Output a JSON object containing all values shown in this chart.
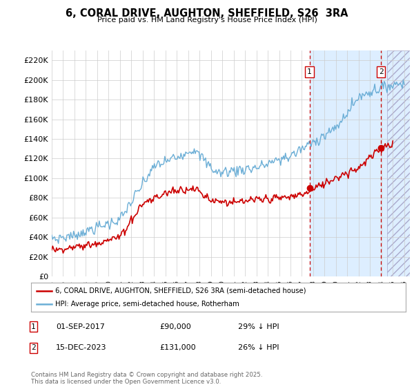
{
  "title": "6, CORAL DRIVE, AUGHTON, SHEFFIELD, S26  3RA",
  "subtitle": "Price paid vs. HM Land Registry's House Price Index (HPI)",
  "ylim": [
    0,
    230000
  ],
  "yticks": [
    0,
    20000,
    40000,
    60000,
    80000,
    100000,
    120000,
    140000,
    160000,
    180000,
    200000,
    220000
  ],
  "ytick_labels": [
    "£0",
    "£20K",
    "£40K",
    "£60K",
    "£80K",
    "£100K",
    "£120K",
    "£140K",
    "£160K",
    "£180K",
    "£200K",
    "£220K"
  ],
  "xlim_start": 1995.0,
  "xlim_end": 2026.5,
  "hpi_color": "#6baed6",
  "hpi_fill_color": "#ddeeff",
  "price_color": "#cc0000",
  "vline_color": "#cc0000",
  "background_color": "#ffffff",
  "grid_color": "#cccccc",
  "legend_label_red": "6, CORAL DRIVE, AUGHTON, SHEFFIELD, S26 3RA (semi-detached house)",
  "legend_label_blue": "HPI: Average price, semi-detached house, Rotherham",
  "annotation1_date": "01-SEP-2017",
  "annotation1_price": "£90,000",
  "annotation1_hpi": "29% ↓ HPI",
  "annotation1_year": 2017.67,
  "annotation1_price_val": 90000,
  "annotation2_date": "15-DEC-2023",
  "annotation2_price": "£131,000",
  "annotation2_hpi": "26% ↓ HPI",
  "annotation2_year": 2023.96,
  "annotation2_price_val": 131000,
  "copyright": "Contains HM Land Registry data © Crown copyright and database right 2025.\nThis data is licensed under the Open Government Licence v3.0.",
  "hatch_region_start": 2024.5,
  "hatch_region_end": 2026.5,
  "shade_region_start": 2017.67,
  "shade_region_end": 2026.5
}
